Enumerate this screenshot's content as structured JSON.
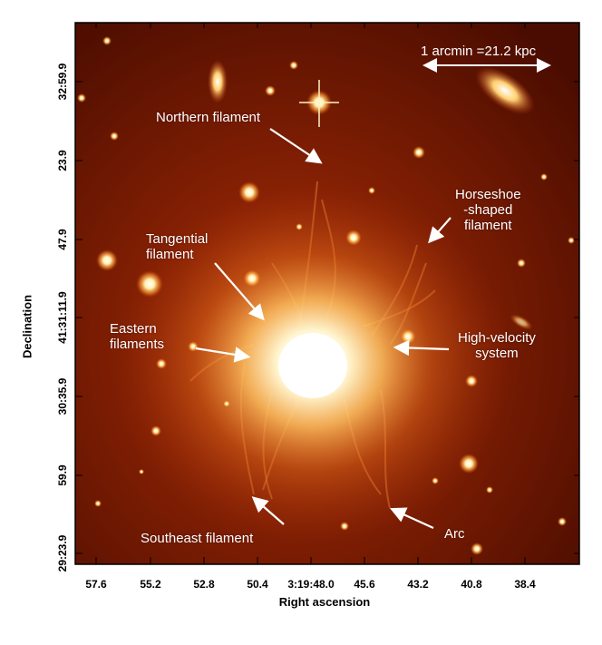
{
  "image": {
    "x_axis": {
      "title": "Right ascension",
      "ticks": [
        "57.6",
        "55.2",
        "52.8",
        "50.4",
        "3:19:48.0",
        "45.6",
        "43.2",
        "40.8",
        "38.4"
      ]
    },
    "y_axis": {
      "title": "Declination",
      "ticks": [
        "32:59.9",
        "23.9",
        "47.9",
        "41:31:11.9",
        "30:35.9",
        "59.9",
        "29:23.9"
      ]
    },
    "scale_bar": {
      "label": "1 arcmin =21.2 kpc"
    },
    "annotations": {
      "northern": "Northern filament",
      "horseshoe": "Horseshoe\n-shaped\nfilament",
      "tangential": "Tangential\nfilament",
      "eastern": "Eastern\nfilaments",
      "high_velocity": "High-velocity\nsystem",
      "southeast": "Southeast filament",
      "arc": "Arc"
    },
    "colors": {
      "background": "#5a1000",
      "core": "#ffffff",
      "glow": "#ff9a3a",
      "label": "#ffffff"
    }
  }
}
